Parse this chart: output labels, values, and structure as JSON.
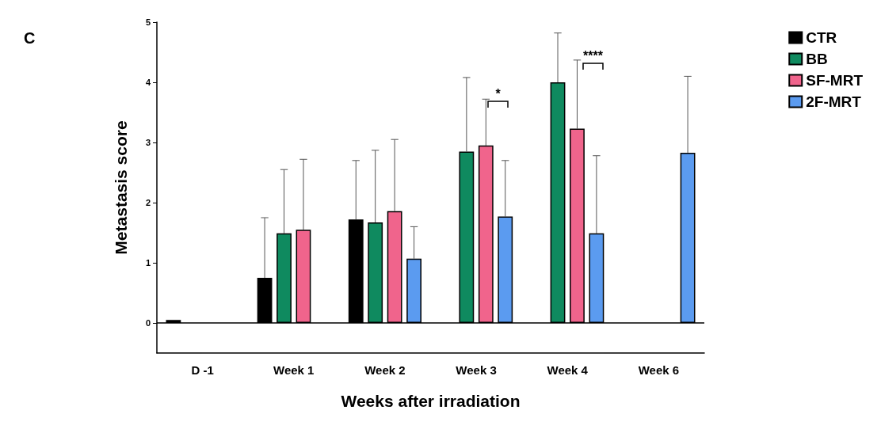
{
  "chart_data": {
    "type": "bar",
    "xlabel": "Weeks after irradiation",
    "ylabel": "Metastasis score",
    "categories": [
      "D -1",
      "Week 1",
      "Week 2",
      "Week 3",
      "Week 4",
      "Week 6"
    ],
    "series": [
      {
        "name": "CTR",
        "color": "#000000",
        "values": [
          0.05,
          0.75,
          1.72,
          null,
          null,
          null
        ],
        "errors": [
          null,
          [
            0.75,
            1.75
          ],
          [
            1.72,
            2.7
          ],
          null,
          null,
          null
        ]
      },
      {
        "name": "BB",
        "color": "#0f8a5f",
        "values": [
          null,
          1.49,
          1.67,
          2.85,
          4.0,
          null
        ],
        "errors": [
          null,
          [
            1.49,
            2.55
          ],
          [
            1.67,
            2.87
          ],
          [
            2.85,
            4.08
          ],
          [
            4.0,
            4.82
          ],
          null
        ]
      },
      {
        "name": "SF-MRT",
        "color": "#f0648c",
        "values": [
          null,
          1.55,
          1.86,
          2.95,
          3.23,
          null
        ],
        "errors": [
          null,
          [
            1.55,
            2.72
          ],
          [
            1.86,
            3.05
          ],
          [
            2.95,
            3.72
          ],
          [
            3.23,
            4.37
          ],
          null
        ]
      },
      {
        "name": "2F-MRT",
        "color": "#5b9bf0",
        "values": [
          null,
          null,
          1.07,
          1.77,
          1.49,
          2.83
        ],
        "errors": [
          null,
          null,
          [
            1.07,
            1.6
          ],
          [
            1.77,
            2.7
          ],
          [
            1.49,
            2.78
          ],
          [
            2.83,
            4.1
          ]
        ]
      }
    ],
    "ylim": [
      -0.5,
      5
    ],
    "yticks": [
      0,
      1,
      2,
      3,
      4,
      5
    ],
    "grid": false,
    "legend": "top right",
    "ref_lines": [
      {
        "axis": "y",
        "value": 0
      }
    ],
    "annotations": [
      "C",
      "*",
      "****"
    ]
  }
}
